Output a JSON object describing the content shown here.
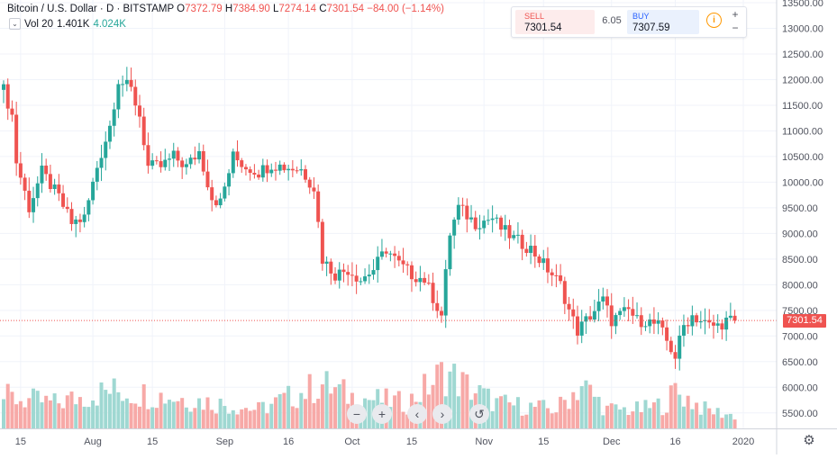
{
  "legend": {
    "symbol": "Bitcoin / U.S. Dollar",
    "sep1": "·",
    "interval": "D",
    "sep2": "·",
    "exchange": "BITSTAMP",
    "o_label": "O",
    "open": "7372.79",
    "h_label": "H",
    "high": "7384.90",
    "l_label": "L",
    "low": "7274.14",
    "c_label": "C",
    "close": "7301.54",
    "change": "−84.00 (−1.14%)",
    "vol_label": "Vol 20",
    "vol_a": "1.401K",
    "vol_b": "4.024K"
  },
  "trade_panel": {
    "sell_label": "SELL",
    "sell_price": "7301.54",
    "spread": "6.05",
    "buy_label": "BUY",
    "buy_price": "7307.59",
    "info_glyph": "i",
    "plus": "+",
    "minus": "−"
  },
  "controls": {
    "zoom_out": "−",
    "zoom_in": "+",
    "scroll_left": "‹",
    "scroll_right": "›",
    "reset": "↺",
    "settings": "⚙"
  },
  "colors": {
    "up": "#26a69a",
    "down": "#ef5350",
    "vol_up": "#9fd8d2",
    "vol_down": "#f7a9a7",
    "grid": "#f0f3fa",
    "axis_text": "#50535e",
    "price_line": "#ef5350"
  },
  "chart_data": {
    "type": "candlestick",
    "symbol": "Bitcoin / U.S. Dollar",
    "exchange": "BITSTAMP",
    "interval": "D",
    "last_price": 7301.54,
    "price_label": "7301.54",
    "y_axis": {
      "min": 5250,
      "max": 13500,
      "ticks": [
        5500,
        6000,
        6500,
        7000,
        7500,
        8000,
        8500,
        9000,
        9500,
        10000,
        10500,
        11000,
        11500,
        12000,
        12500,
        13000,
        13500
      ],
      "tick_labels": [
        "5500.00",
        "6000.00",
        "6500.00",
        "7000.00",
        "7500.00",
        "8000.00",
        "8500.00",
        "9000.00",
        "9500.00",
        "10000.00",
        "10500.00",
        "11000.00",
        "11500.00",
        "12000.00",
        "12500.00",
        "13000.00",
        "13500.00"
      ]
    },
    "x_axis": {
      "labels": [
        {
          "label": "15",
          "day": 4
        },
        {
          "label": "Aug",
          "day": 21
        },
        {
          "label": "15",
          "day": 35
        },
        {
          "label": "Sep",
          "day": 52
        },
        {
          "label": "16",
          "day": 67
        },
        {
          "label": "Oct",
          "day": 82
        },
        {
          "label": "15",
          "day": 96
        },
        {
          "label": "Nov",
          "day": 113
        },
        {
          "label": "15",
          "day": 127
        },
        {
          "label": "Dec",
          "day": 143
        },
        {
          "label": "16",
          "day": 158
        },
        {
          "label": "2020",
          "day": 174
        }
      ]
    },
    "grid": true,
    "anchors": [
      [
        0,
        11800
      ],
      [
        2,
        11300
      ],
      [
        3,
        10400
      ],
      [
        6,
        9500
      ],
      [
        9,
        10200
      ],
      [
        13,
        9700
      ],
      [
        16,
        9200
      ],
      [
        19,
        9300
      ],
      [
        22,
        10300
      ],
      [
        25,
        11100
      ],
      [
        27,
        12000
      ],
      [
        30,
        11800
      ],
      [
        32,
        11300
      ],
      [
        34,
        10300
      ],
      [
        37,
        10300
      ],
      [
        40,
        10500
      ],
      [
        43,
        10300
      ],
      [
        46,
        10600
      ],
      [
        49,
        9700
      ],
      [
        51,
        9600
      ],
      [
        54,
        10500
      ],
      [
        57,
        10300
      ],
      [
        60,
        10200
      ],
      [
        63,
        10350
      ],
      [
        66,
        10300
      ],
      [
        70,
        10250
      ],
      [
        73,
        9900
      ],
      [
        75,
        8500
      ],
      [
        78,
        8200
      ],
      [
        81,
        8300
      ],
      [
        84,
        8100
      ],
      [
        87,
        8300
      ],
      [
        90,
        8700
      ],
      [
        93,
        8400
      ],
      [
        96,
        8200
      ],
      [
        99,
        8100
      ],
      [
        103,
        7400
      ],
      [
        105,
        9000
      ],
      [
        107,
        9500
      ],
      [
        111,
        9200
      ],
      [
        115,
        9300
      ],
      [
        117,
        9100
      ],
      [
        120,
        8900
      ],
      [
        124,
        8700
      ],
      [
        127,
        8400
      ],
      [
        131,
        8000
      ],
      [
        133,
        7500
      ],
      [
        135,
        7100
      ],
      [
        137,
        7300
      ],
      [
        139,
        7500
      ],
      [
        141,
        7700
      ],
      [
        143,
        7300
      ],
      [
        145,
        7400
      ],
      [
        147,
        7500
      ],
      [
        149,
        7300
      ],
      [
        151,
        7300
      ],
      [
        154,
        7200
      ],
      [
        156,
        6900
      ],
      [
        158,
        6600
      ],
      [
        160,
        7200
      ],
      [
        162,
        7400
      ],
      [
        164,
        7300
      ],
      [
        166,
        7200
      ],
      [
        168,
        7200
      ],
      [
        170,
        7300
      ],
      [
        172,
        7300
      ]
    ],
    "volume_level": [
      [
        0,
        5
      ],
      [
        12,
        4
      ],
      [
        25,
        6
      ],
      [
        40,
        5
      ],
      [
        60,
        3
      ],
      [
        75,
        7
      ],
      [
        82,
        5
      ],
      [
        95,
        4
      ],
      [
        104,
        9
      ],
      [
        108,
        7
      ],
      [
        116,
        4
      ],
      [
        130,
        3
      ],
      [
        136,
        7
      ],
      [
        142,
        3
      ],
      [
        150,
        3
      ],
      [
        156,
        4
      ],
      [
        158,
        6
      ],
      [
        165,
        3
      ],
      [
        172,
        2
      ]
    ]
  }
}
